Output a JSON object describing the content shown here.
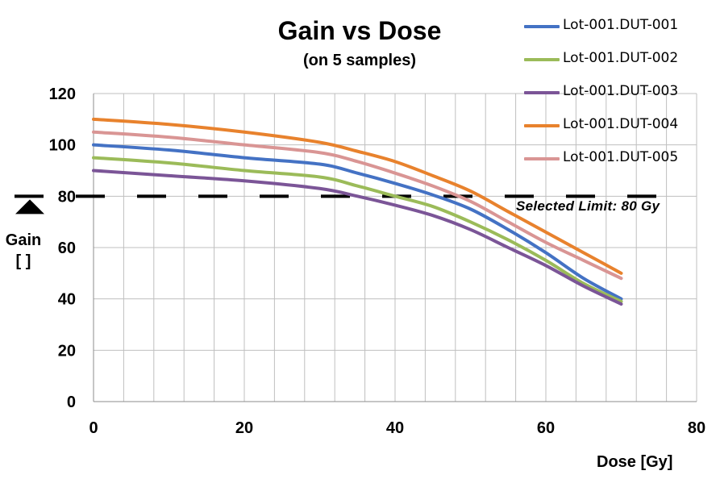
{
  "chart_data": {
    "type": "line",
    "title": "Gain vs Dose",
    "subtitle": "(on 5 samples)",
    "xlabel": "Dose [Gy]",
    "ylabel_line1": "Gain",
    "ylabel_line2": "[ ]",
    "xlim": [
      0,
      80
    ],
    "ylim": [
      0,
      120
    ],
    "xticks": [
      0,
      20,
      40,
      60,
      80
    ],
    "yticks": [
      0,
      20,
      40,
      60,
      80,
      100,
      120
    ],
    "grid": true,
    "legend_position": "top-right",
    "threshold": {
      "value": 80,
      "label": "Selected Limit: 80 Gy"
    },
    "series": [
      {
        "name": "Lot-001.DUT-001",
        "color": "#4472C4",
        "x": [
          0,
          10,
          20,
          30,
          35,
          40,
          45,
          50,
          55,
          60,
          65,
          70
        ],
        "y": [
          100,
          98,
          95,
          92.5,
          89,
          85,
          80.5,
          75,
          67,
          58,
          48,
          40
        ]
      },
      {
        "name": "Lot-001.DUT-002",
        "color": "#9BBB59",
        "x": [
          0,
          10,
          20,
          30,
          35,
          40,
          45,
          50,
          55,
          60,
          65,
          70
        ],
        "y": [
          95,
          93,
          90,
          87.5,
          84,
          80,
          76,
          70,
          63,
          55,
          46,
          39
        ]
      },
      {
        "name": "Lot-001.DUT-003",
        "color": "#7B5597",
        "x": [
          0,
          10,
          20,
          30,
          35,
          40,
          45,
          50,
          55,
          60,
          65,
          70
        ],
        "y": [
          90,
          88,
          86,
          83,
          80,
          76.5,
          72.5,
          67,
          60,
          53,
          45,
          38
        ]
      },
      {
        "name": "Lot-001.DUT-004",
        "color": "#E8822D",
        "x": [
          0,
          10,
          20,
          30,
          35,
          40,
          45,
          50,
          55,
          60,
          65,
          70
        ],
        "y": [
          110,
          108,
          105,
          101,
          97.5,
          93.5,
          88,
          82,
          74,
          66,
          58,
          50
        ]
      },
      {
        "name": "Lot-001.DUT-005",
        "color": "#D99594",
        "x": [
          0,
          10,
          20,
          30,
          35,
          40,
          45,
          50,
          55,
          60,
          65,
          70
        ],
        "y": [
          105,
          103,
          100,
          97,
          93.5,
          89,
          84,
          78,
          70,
          62,
          55,
          48
        ]
      }
    ]
  }
}
